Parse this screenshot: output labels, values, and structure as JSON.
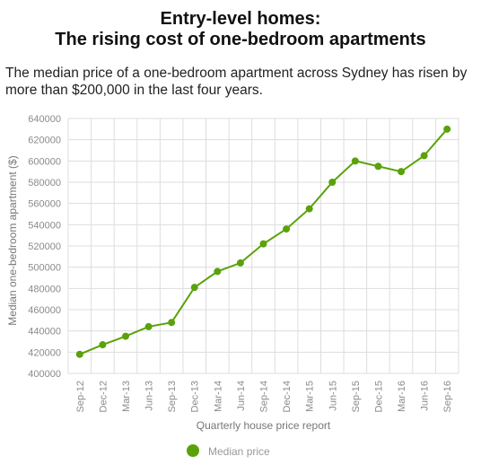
{
  "header": {
    "title_line1": "Entry-level homes:",
    "title_line2": "The rising cost of one-bedroom apartments",
    "subtitle": "The median price of a one-bedroom apartment across Sydney has risen by more than $200,000 in the last four years."
  },
  "chart_data": {
    "type": "line",
    "categories": [
      "Sep-12",
      "Dec-12",
      "Mar-13",
      "Jun-13",
      "Sep-13",
      "Dec-13",
      "Mar-14",
      "Jun-14",
      "Sep-14",
      "Dec-14",
      "Mar-15",
      "Jun-15",
      "Sep-15",
      "Dec-15",
      "Mar-16",
      "Jun-16",
      "Sep-16"
    ],
    "series": [
      {
        "name": "Median price",
        "values": [
          418000,
          427000,
          435000,
          444000,
          448000,
          481000,
          496000,
          504000,
          522000,
          536000,
          555000,
          580000,
          600000,
          595000,
          590000,
          605000,
          630000
        ]
      }
    ],
    "xlabel": "Quarterly house price report",
    "ylabel": "Median one-bedroom apartment ($)",
    "ylim": [
      400000,
      640000
    ],
    "yticks": [
      400000,
      420000,
      440000,
      460000,
      480000,
      500000,
      520000,
      540000,
      560000,
      580000,
      600000,
      620000,
      640000
    ],
    "grid": true,
    "legend": "bottom-center",
    "colors": {
      "series": "#5aa20a",
      "grid": "#dddddd"
    }
  }
}
